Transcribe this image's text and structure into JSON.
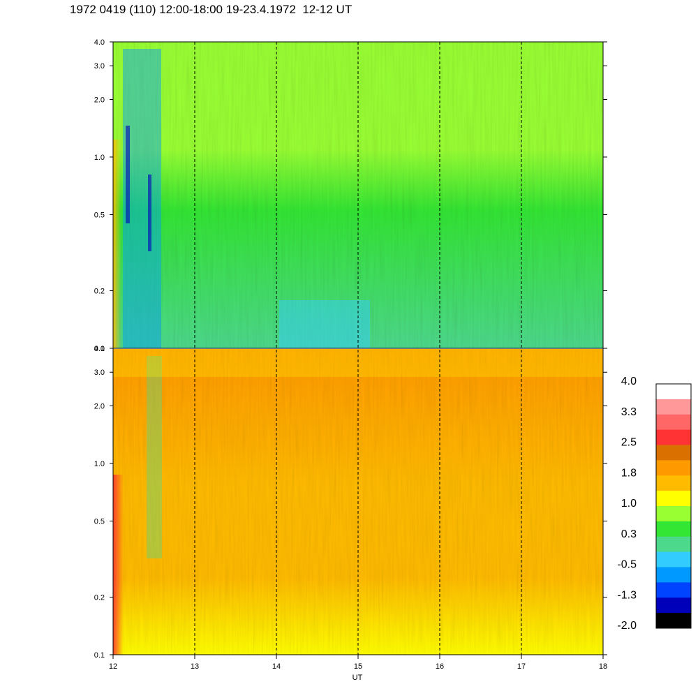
{
  "title": "1972 0419 (110) 12:00-18:00 19-23.4.1972  12-12 UT",
  "chart_data": {
    "type": "heatmap",
    "xlabel": "UT",
    "x_ticks": [
      "12",
      "13",
      "14",
      "15",
      "16",
      "17",
      "18"
    ],
    "xlim": [
      12,
      18
    ],
    "dashed_hours": [
      13,
      14,
      15,
      16,
      17
    ],
    "y_scale": "log",
    "y_ticks": [
      "4.0",
      "3.0",
      "2.0",
      "1.0",
      "0.5",
      "0.2",
      "0.1"
    ],
    "ylim": [
      0.1,
      4.0
    ],
    "panels": [
      {
        "name": "upper",
        "dominant_color": "#4de04d"
      },
      {
        "name": "lower",
        "dominant_color": "#ff9900"
      }
    ],
    "colorbar": {
      "labels": [
        "4.0",
        "3.3",
        "2.5",
        "1.8",
        "1.0",
        "0.3",
        "-0.5",
        "-1.3",
        "-2.0"
      ],
      "colors": [
        "#ffffff",
        "#ff9999",
        "#ff6666",
        "#ff3333",
        "#d97000",
        "#ff9900",
        "#ffbb00",
        "#ffff00",
        "#99ff33",
        "#33e633",
        "#4dd98c",
        "#33ccff",
        "#0099ff",
        "#0044ff",
        "#0000bb",
        "#000000"
      ]
    }
  }
}
